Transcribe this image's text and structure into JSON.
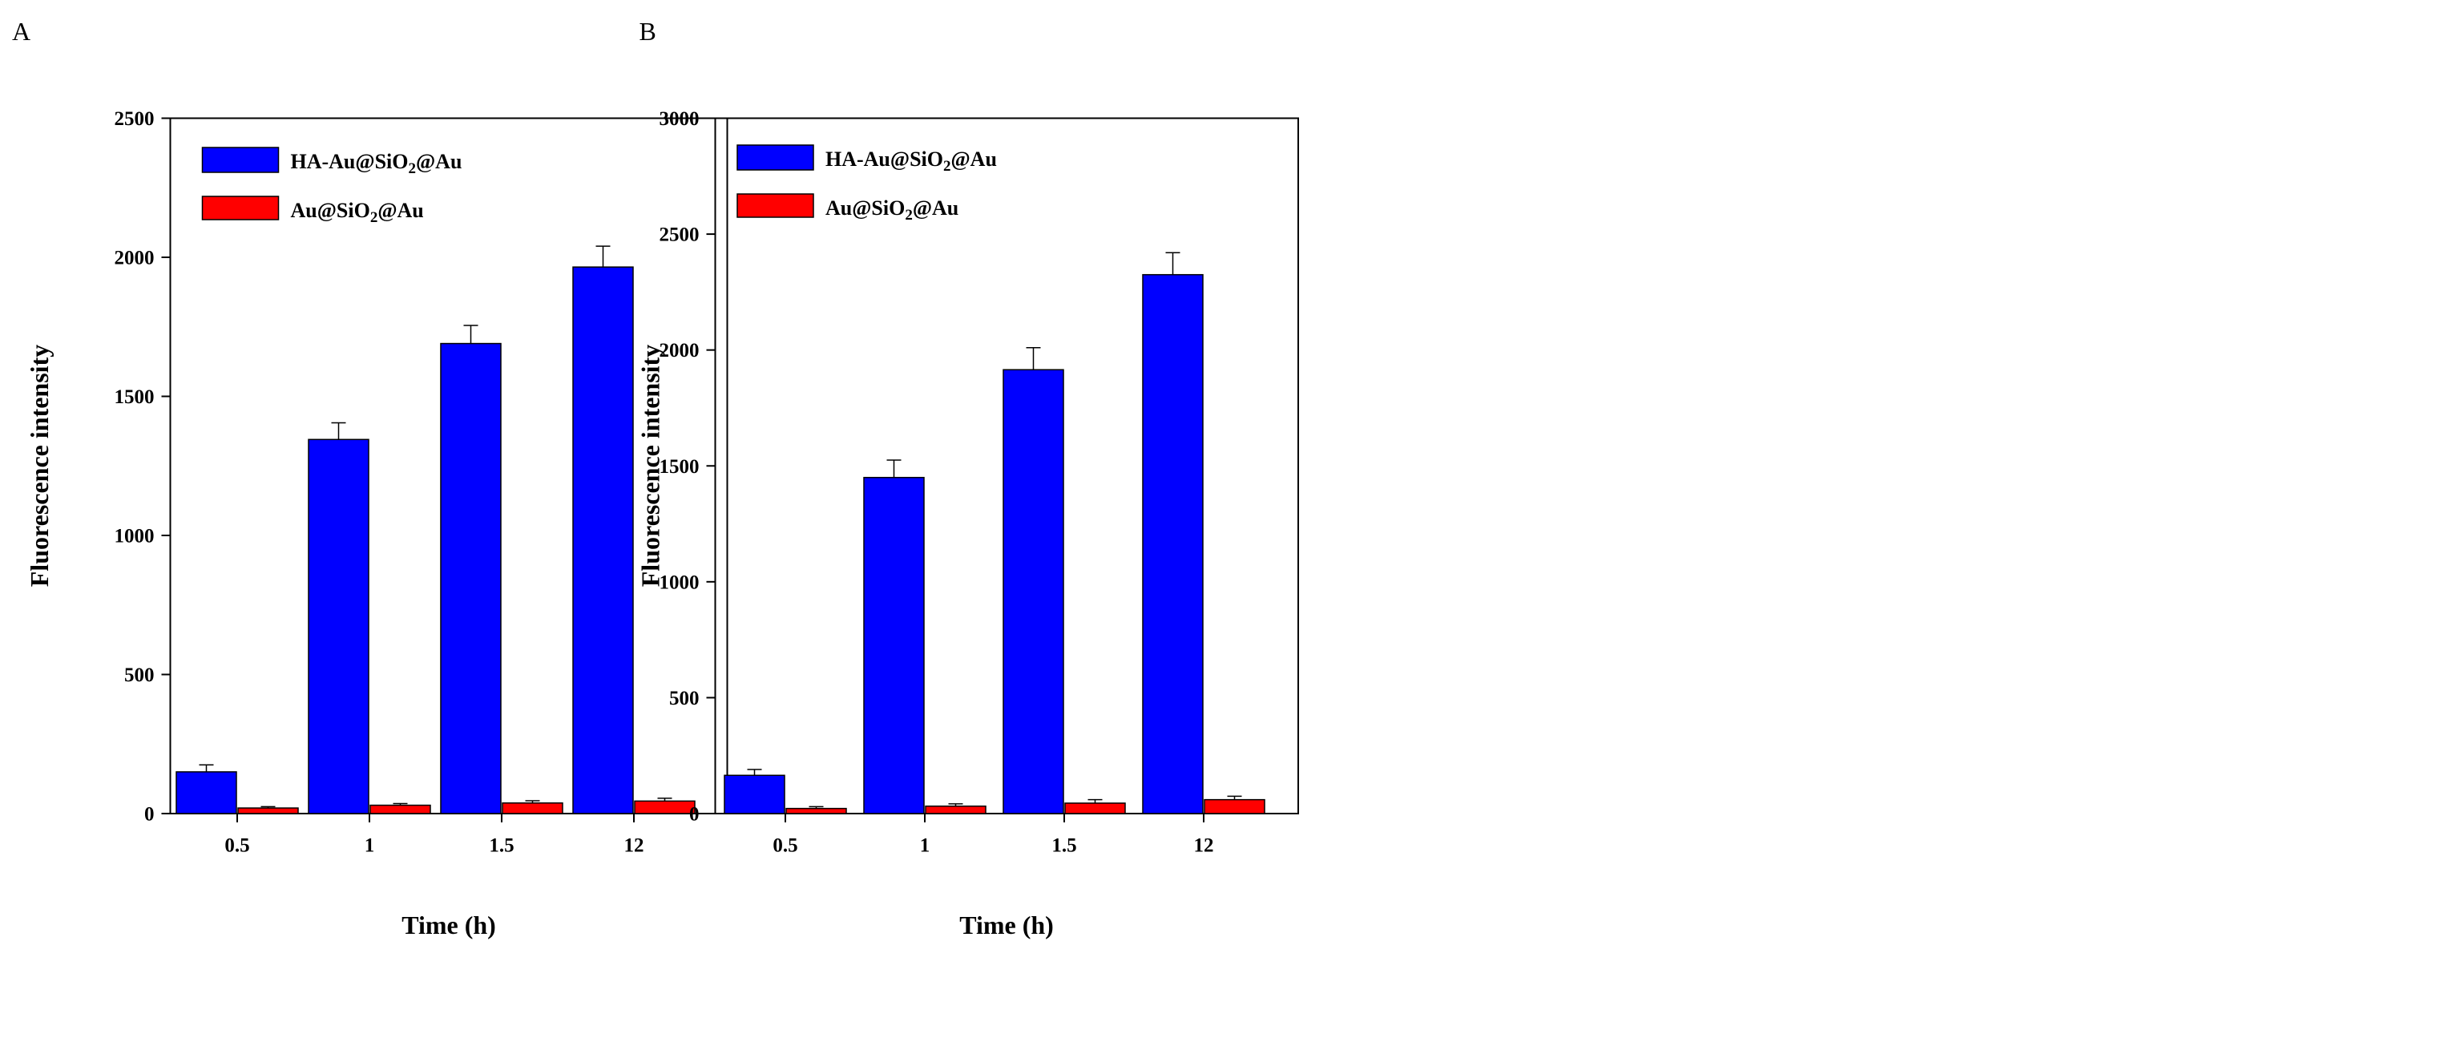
{
  "figure": {
    "panels": [
      {
        "label": "A",
        "title": "",
        "xlabel": "Time (h)",
        "ylabel": "Fluorescence intensity",
        "ylim": [
          0,
          2500
        ],
        "yticks": [
          0,
          500,
          1000,
          1500,
          2000,
          2500
        ],
        "legend_position": "top-left",
        "series_colors": [
          "#0000ff",
          "#ff0000"
        ]
      },
      {
        "label": "B",
        "title": "",
        "xlabel": "Time (h)",
        "ylabel": "Fluorescence intensity",
        "ylim": [
          0,
          3000
        ],
        "yticks": [
          0,
          500,
          1000,
          1500,
          2000,
          2500,
          3000
        ],
        "legend_position": "top-left",
        "series_colors": [
          "#0000ff",
          "#ff0000"
        ]
      }
    ]
  },
  "chart_data": [
    {
      "type": "bar",
      "title": "",
      "xlabel": "Time (h)",
      "ylabel": "Fluorescence intensity",
      "ylim": [
        0,
        2500
      ],
      "categories": [
        "0.5",
        "1",
        "1.5",
        "12"
      ],
      "series": [
        {
          "name": "HA-Au@SiO2@Au",
          "legend": {
            "pre": "HA-Au@SiO",
            "sub": "2",
            "post": "@Au"
          },
          "color": "#0000ff",
          "values": [
            150,
            1345,
            1690,
            1965
          ],
          "errors": [
            25,
            60,
            65,
            75
          ]
        },
        {
          "name": "Au@SiO2@Au",
          "legend": {
            "pre": "Au@SiO",
            "sub": "2",
            "post": "@Au"
          },
          "color": "#ff0000",
          "values": [
            20,
            30,
            38,
            45
          ],
          "errors": [
            5,
            6,
            8,
            10
          ]
        }
      ]
    },
    {
      "type": "bar",
      "title": "",
      "xlabel": "Time (h)",
      "ylabel": "Fluorescence intensity",
      "ylim": [
        0,
        3000
      ],
      "categories": [
        "0.5",
        "1",
        "1.5",
        "12"
      ],
      "series": [
        {
          "name": "HA-Au@SiO2@Au",
          "legend": {
            "pre": "HA-Au@SiO",
            "sub": "2",
            "post": "@Au"
          },
          "color": "#0000ff",
          "values": [
            165,
            1450,
            1915,
            2325
          ],
          "errors": [
            25,
            75,
            95,
            95
          ]
        },
        {
          "name": "Au@SiO2@Au",
          "legend": {
            "pre": "Au@SiO",
            "sub": "2",
            "post": "@Au"
          },
          "color": "#ff0000",
          "values": [
            22,
            32,
            45,
            60
          ],
          "errors": [
            8,
            10,
            15,
            15
          ]
        }
      ]
    }
  ]
}
